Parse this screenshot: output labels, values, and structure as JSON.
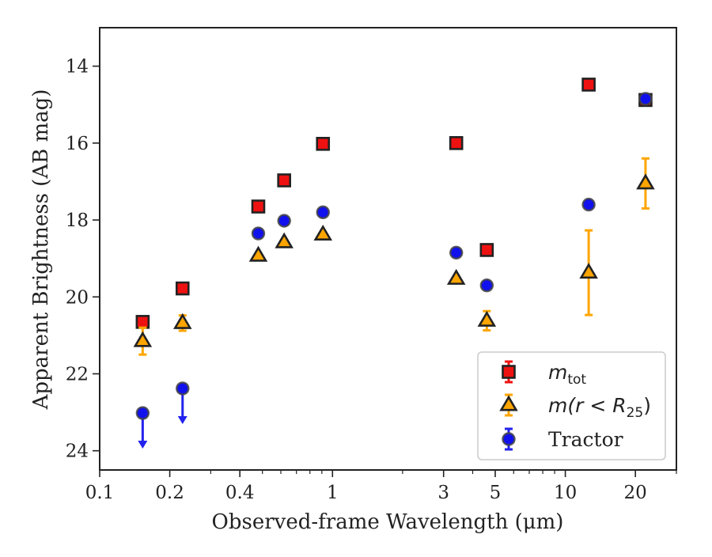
{
  "chart_data": {
    "type": "scatter",
    "xlabel": "Observed-frame Wavelength (μm)",
    "ylabel": "Apparent Brightness (AB mag)",
    "xscale": "log",
    "xlim": [
      0.1,
      30
    ],
    "ylim": [
      24.5,
      13
    ],
    "y_inverted": true,
    "grid": false,
    "legend_position": "lower right",
    "x_ticks": [
      {
        "value": 0.1,
        "label": "0.1"
      },
      {
        "value": 0.2,
        "label": "0.2"
      },
      {
        "value": 0.4,
        "label": "0.4"
      },
      {
        "value": 1,
        "label": "1"
      },
      {
        "value": 3,
        "label": "3"
      },
      {
        "value": 5,
        "label": "5"
      },
      {
        "value": 10,
        "label": "10"
      },
      {
        "value": 20,
        "label": "20"
      }
    ],
    "y_ticks": [
      {
        "value": 14,
        "label": "14"
      },
      {
        "value": 16,
        "label": "16"
      },
      {
        "value": 18,
        "label": "18"
      },
      {
        "value": 20,
        "label": "20"
      },
      {
        "value": 22,
        "label": "22"
      },
      {
        "value": 24,
        "label": "24"
      }
    ],
    "series": [
      {
        "key": "mtot",
        "legend_math": "m",
        "legend_sub": "tot",
        "marker": "square",
        "color": "#ee1111",
        "edge": "#222222",
        "errcolor": "#ee1111",
        "points": [
          {
            "x": 0.153,
            "y": 20.65
          },
          {
            "x": 0.227,
            "y": 19.78
          },
          {
            "x": 0.48,
            "y": 17.65
          },
          {
            "x": 0.62,
            "y": 16.97
          },
          {
            "x": 0.91,
            "y": 16.02
          },
          {
            "x": 3.4,
            "y": 16.0
          },
          {
            "x": 4.6,
            "y": 18.78
          },
          {
            "x": 12.6,
            "y": 14.48
          },
          {
            "x": 22.1,
            "y": 14.88
          }
        ]
      },
      {
        "key": "mr25",
        "legend_math": "m(r < R",
        "legend_sub": "25",
        "legend_tail": ")",
        "marker": "triangle",
        "color": "#ffa500",
        "edge": "#222222",
        "errcolor": "#ffa500",
        "points": [
          {
            "x": 0.153,
            "y": 21.15,
            "err": 0.35
          },
          {
            "x": 0.227,
            "y": 20.68,
            "err": 0.2
          },
          {
            "x": 0.48,
            "y": 18.93,
            "err": 0.05
          },
          {
            "x": 0.62,
            "y": 18.58,
            "err": 0.05
          },
          {
            "x": 0.91,
            "y": 18.38,
            "err": 0.05
          },
          {
            "x": 3.4,
            "y": 19.53,
            "err": 0.05
          },
          {
            "x": 4.6,
            "y": 20.62,
            "err": 0.25
          },
          {
            "x": 12.6,
            "y": 19.37,
            "err": 1.1
          },
          {
            "x": 22.1,
            "y": 17.05,
            "err": 0.65
          }
        ]
      },
      {
        "key": "tractor",
        "legend_name": "Tractor",
        "marker": "circle",
        "color": "#1111ee",
        "edge": "#444444",
        "errcolor": "#2222ee",
        "points": [
          {
            "x": 0.153,
            "y": 23.02,
            "upper_limit": true
          },
          {
            "x": 0.227,
            "y": 22.38,
            "upper_limit": true
          },
          {
            "x": 0.48,
            "y": 18.35
          },
          {
            "x": 0.62,
            "y": 18.02
          },
          {
            "x": 0.91,
            "y": 17.8
          },
          {
            "x": 3.4,
            "y": 18.85
          },
          {
            "x": 4.6,
            "y": 19.7
          },
          {
            "x": 12.6,
            "y": 17.6
          },
          {
            "x": 22.1,
            "y": 14.85
          }
        ]
      }
    ]
  }
}
